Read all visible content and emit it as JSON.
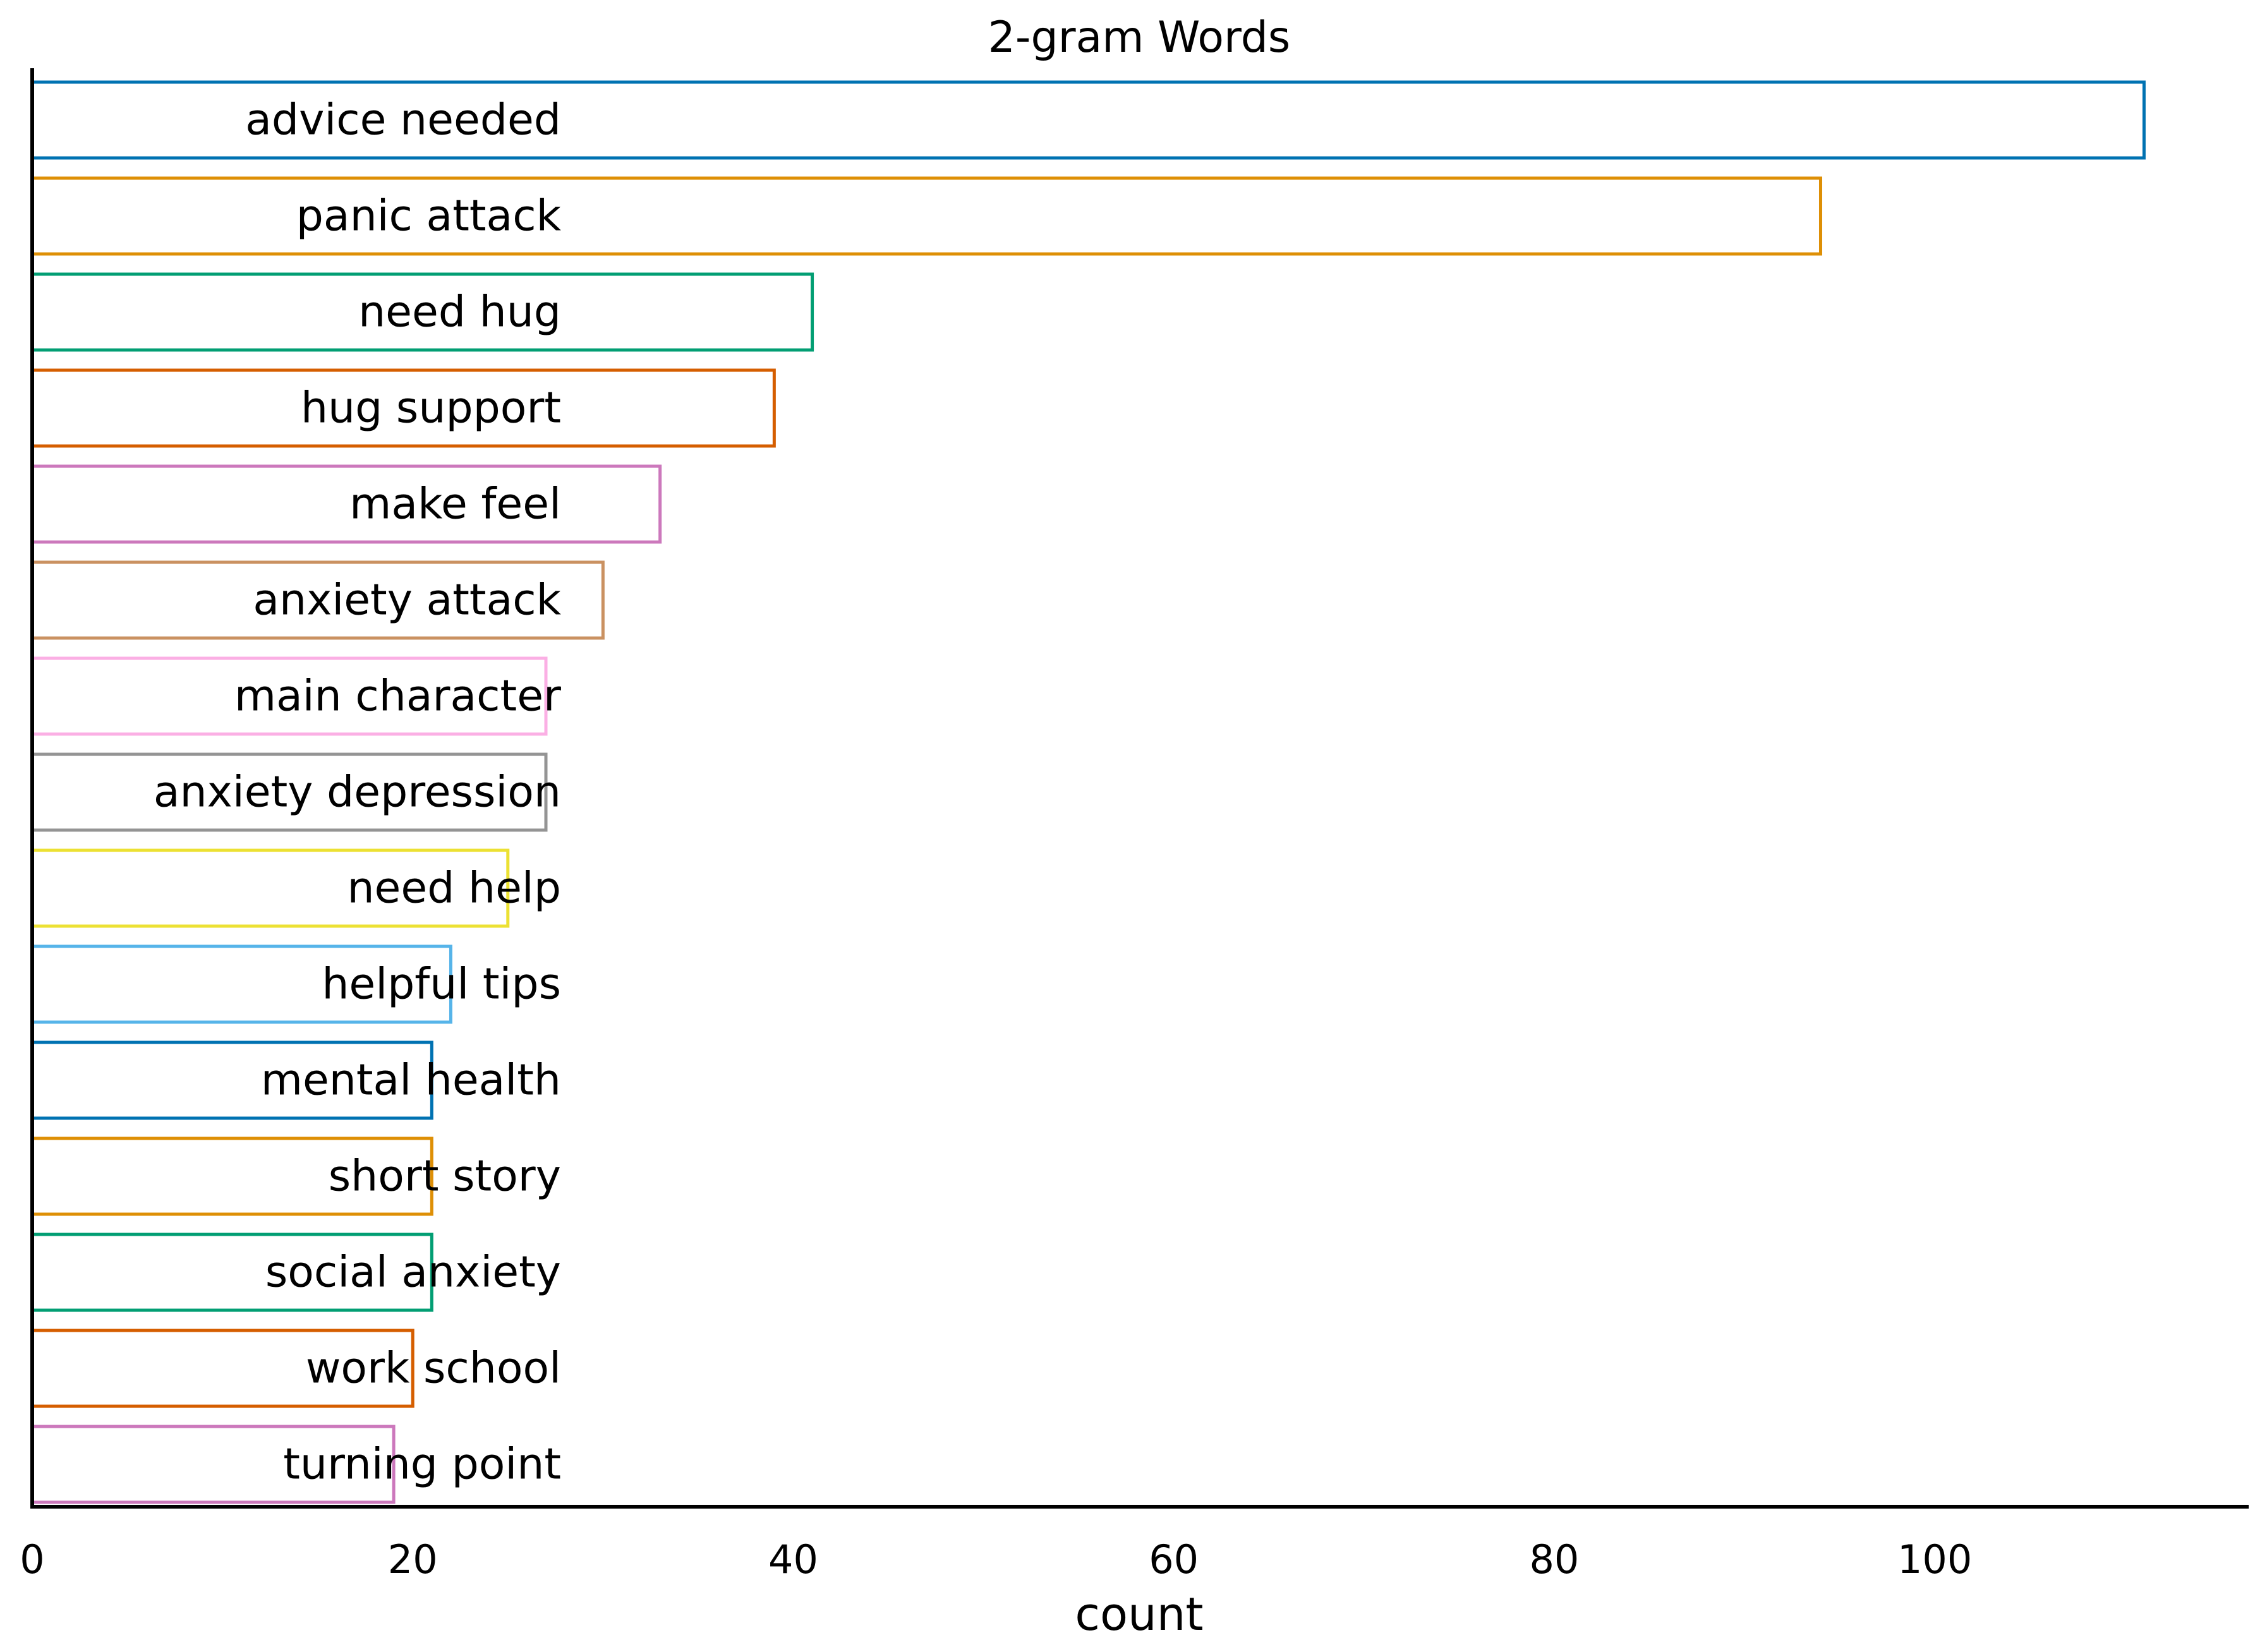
{
  "chart_data": {
    "type": "bar",
    "orientation": "horizontal",
    "title": "2-gram Words",
    "xlabel": "count",
    "ylabel": "",
    "xlim": [
      0,
      116.5
    ],
    "xticks": [
      0,
      20,
      40,
      60,
      80,
      100
    ],
    "grid": false,
    "legend": "none",
    "bar_style": "outline",
    "label_placement": "inside-right-aligned",
    "categories": [
      "advice needed",
      "panic attack",
      "need hug",
      "hug support",
      "make feel",
      "anxiety attack",
      "main character",
      "anxiety depression",
      "need help",
      "helpful tips",
      "mental health",
      "short story",
      "social anxiety",
      "work school",
      "turning point"
    ],
    "values": [
      111,
      94,
      41,
      39,
      33,
      30,
      27,
      27,
      25,
      22,
      21,
      21,
      21,
      20,
      19
    ],
    "colors": [
      "#0072b2",
      "#de8f05",
      "#029e73",
      "#d55e00",
      "#cc78bc",
      "#ca9161",
      "#fbafe4",
      "#949494",
      "#ece133",
      "#56b4e9",
      "#0072b2",
      "#de8f05",
      "#029e73",
      "#d55e00",
      "#cc78bc"
    ]
  }
}
